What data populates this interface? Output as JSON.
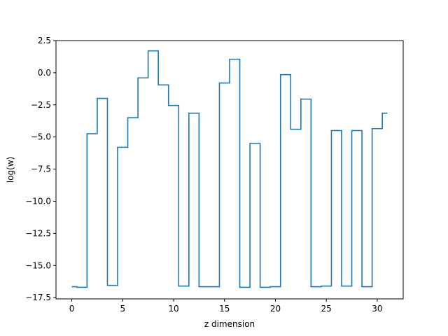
{
  "chart_data": {
    "type": "line",
    "drawstyle": "steps-mid",
    "xlabel": "z dimension",
    "ylabel": "log(w)",
    "xlim": [
      -1.55,
      32.55
    ],
    "ylim": [
      -17.6,
      2.5
    ],
    "xticks": [
      0,
      5,
      10,
      15,
      20,
      25,
      30
    ],
    "yticks": [
      2.5,
      0.0,
      -2.5,
      -5.0,
      -7.5,
      -10.0,
      -12.5,
      -15.0,
      -17.5
    ],
    "ytick_labels": [
      "2.5",
      "0.0",
      "−2.5",
      "−5.0",
      "−7.5",
      "−10.0",
      "−12.5",
      "−15.0",
      "−17.5"
    ],
    "grid": false,
    "line_color": "#1f77b4",
    "series": [
      {
        "x": [
          0,
          1,
          2,
          3,
          4,
          5,
          6,
          7,
          8,
          9,
          10,
          11,
          12,
          13,
          14,
          15,
          16,
          17,
          18,
          19,
          20,
          21,
          22,
          23,
          24,
          25,
          26,
          27,
          28,
          29,
          30,
          31
        ],
        "y": [
          -16.65,
          -16.7,
          -4.75,
          -2.0,
          -16.55,
          -5.8,
          -3.5,
          -0.4,
          1.7,
          -0.95,
          -2.55,
          -16.6,
          -3.15,
          -16.65,
          -16.65,
          -0.8,
          1.05,
          -16.7,
          -5.5,
          -16.7,
          -16.65,
          -0.15,
          -4.4,
          -2.05,
          -16.65,
          -16.6,
          -4.5,
          -16.6,
          -4.5,
          -16.65,
          -4.35,
          -3.15
        ]
      }
    ]
  }
}
